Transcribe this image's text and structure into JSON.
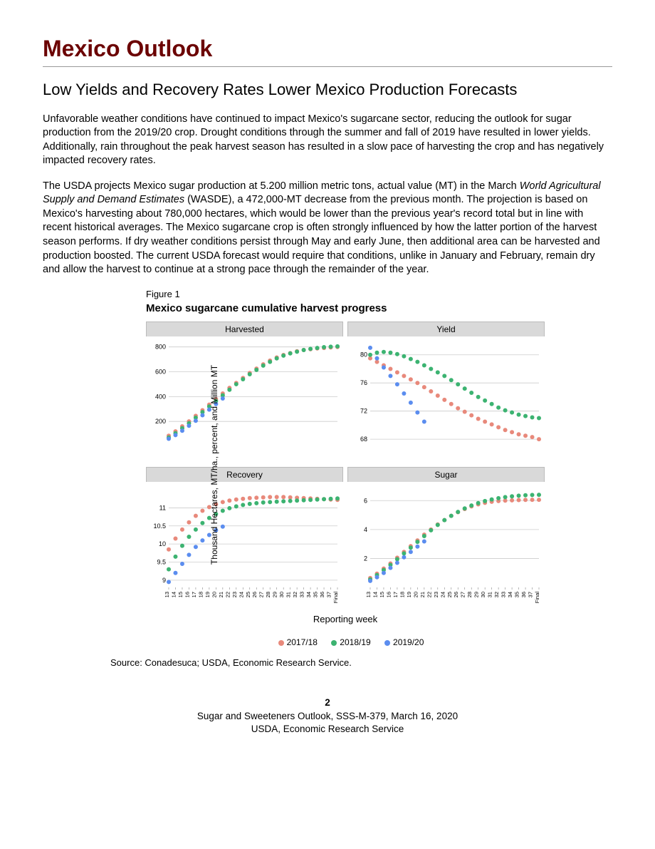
{
  "title": "Mexico Outlook",
  "subheading": "Low Yields and Recovery Rates Lower Mexico Production Forecasts",
  "paragraphs": {
    "p1": "Unfavorable weather conditions have continued to impact Mexico's sugarcane sector, reducing the outlook for sugar production from the 2019/20 crop.  Drought conditions through the summer and fall of 2019 have resulted in lower yields.  Additionally, rain throughout the peak harvest season has resulted in a slow pace of harvesting the crop and has negatively impacted recovery rates.",
    "p2a": "The USDA projects Mexico sugar production at 5.200 million metric tons, actual value (MT) in the March ",
    "p2_em": "World Agricultural Supply and Demand Estimates",
    "p2b": " (WASDE), a 472,000-MT decrease from the previous month. The projection is based on Mexico's harvesting about 780,000 hectares, which would be lower than the previous year's record total but in line with recent historical averages.  The Mexico sugarcane crop is often strongly influenced by how the latter portion of the harvest season performs.  If dry weather conditions persist through May and early June, then additional area can be harvested and production boosted.  The current USDA forecast would require that conditions, unlike in January and February, remain dry and allow the harvest to continue at a strong pace through the remainder of the year."
  },
  "figure": {
    "label": "Figure 1",
    "title": "Mexico sugarcane cumulative harvest progress",
    "ylabel": "Thousand Hectares, MT/ha., percent, and Million MT",
    "xlabel": "Reporting week",
    "source": "Source: Conadesuca; USDA, Economic Research Service.",
    "x_ticks": [
      "13",
      "14",
      "15",
      "16",
      "17",
      "18",
      "19",
      "20",
      "21",
      "22",
      "23",
      "24",
      "25",
      "26",
      "27",
      "28",
      "29",
      "30",
      "31",
      "32",
      "33",
      "34",
      "35",
      "36",
      "37",
      "Final"
    ],
    "colors": {
      "2017/18": "#e8897b",
      "2018/19": "#3cb371",
      "2019/20": "#5b8def",
      "grid": "#cccccc",
      "panel_header_bg": "#d9d9d9",
      "background": "#ffffff"
    },
    "marker": {
      "radius": 3.0,
      "type": "circle"
    },
    "tick_fontsize": 9,
    "legend": [
      {
        "label": "2017/18",
        "key": "2017/18"
      },
      {
        "label": "2018/19",
        "key": "2018/19"
      },
      {
        "label": "2019/20",
        "key": "2019/20"
      }
    ],
    "panels": {
      "harvested": {
        "title": "Harvested",
        "ylim": [
          0,
          850
        ],
        "yticks": [
          200,
          400,
          600,
          800
        ],
        "series": {
          "2017/18": [
            85,
            120,
            160,
            200,
            245,
            290,
            335,
            380,
            425,
            470,
            510,
            550,
            590,
            625,
            660,
            690,
            715,
            735,
            750,
            765,
            775,
            782,
            788,
            792,
            796,
            800
          ],
          "2018/19": [
            70,
            105,
            145,
            185,
            230,
            275,
            320,
            365,
            410,
            455,
            500,
            540,
            580,
            615,
            650,
            680,
            708,
            730,
            748,
            762,
            775,
            785,
            792,
            798,
            802,
            805
          ],
          "2019/20": [
            60,
            90,
            125,
            165,
            205,
            250,
            295,
            340,
            385
          ]
        }
      },
      "yield": {
        "title": "Yield",
        "ylim": [
          67,
          82
        ],
        "yticks": [
          68,
          72,
          76,
          80
        ],
        "series": {
          "2017/18": [
            79.5,
            79.0,
            78.5,
            78.0,
            77.5,
            77.0,
            76.5,
            76.0,
            75.4,
            74.8,
            74.2,
            73.6,
            73.0,
            72.4,
            71.9,
            71.4,
            70.9,
            70.5,
            70.1,
            69.7,
            69.3,
            69.0,
            68.7,
            68.5,
            68.3,
            68.0
          ],
          "2018/19": [
            80.0,
            80.3,
            80.4,
            80.3,
            80.1,
            79.8,
            79.4,
            79.0,
            78.5,
            78.0,
            77.5,
            77.0,
            76.4,
            75.8,
            75.2,
            74.6,
            74.0,
            73.5,
            73.0,
            72.5,
            72.1,
            71.8,
            71.5,
            71.3,
            71.1,
            71.0
          ],
          "2019/20": [
            81.0,
            79.5,
            78.2,
            77.0,
            75.8,
            74.5,
            73.2,
            71.8,
            70.5
          ]
        }
      },
      "recovery": {
        "title": "Recovery",
        "ylim": [
          8.8,
          11.6
        ],
        "yticks": [
          9.0,
          9.5,
          10.0,
          10.5,
          11.0
        ],
        "series": {
          "2017/18": [
            9.85,
            10.15,
            10.4,
            10.6,
            10.78,
            10.92,
            11.02,
            11.1,
            11.16,
            11.2,
            11.23,
            11.25,
            11.27,
            11.28,
            11.29,
            11.3,
            11.3,
            11.3,
            11.29,
            11.28,
            11.27,
            11.26,
            11.25,
            11.24,
            11.23,
            11.22
          ],
          "2018/19": [
            9.3,
            9.65,
            9.95,
            10.2,
            10.4,
            10.58,
            10.72,
            10.83,
            10.92,
            10.99,
            11.04,
            11.08,
            11.11,
            11.13,
            11.15,
            11.16,
            11.17,
            11.18,
            11.19,
            11.2,
            11.21,
            11.22,
            11.23,
            11.24,
            11.25,
            11.26
          ],
          "2019/20": [
            8.95,
            9.2,
            9.45,
            9.7,
            9.92,
            10.1,
            10.25,
            10.38,
            10.48
          ]
        }
      },
      "sugar": {
        "title": "Sugar",
        "ylim": [
          0,
          7
        ],
        "yticks": [
          2,
          4,
          6
        ],
        "series": {
          "2017/18": [
            0.65,
            0.95,
            1.3,
            1.65,
            2.05,
            2.45,
            2.85,
            3.25,
            3.65,
            4.0,
            4.35,
            4.65,
            4.95,
            5.2,
            5.42,
            5.6,
            5.74,
            5.85,
            5.92,
            5.97,
            6.0,
            6.02,
            6.04,
            6.05,
            6.06,
            6.06
          ],
          "2018/19": [
            0.55,
            0.85,
            1.2,
            1.55,
            1.95,
            2.35,
            2.75,
            3.15,
            3.55,
            3.95,
            4.32,
            4.65,
            4.95,
            5.22,
            5.46,
            5.66,
            5.83,
            5.97,
            6.08,
            6.17,
            6.24,
            6.3,
            6.34,
            6.37,
            6.39,
            6.4
          ],
          "2019/20": [
            0.45,
            0.7,
            1.0,
            1.35,
            1.7,
            2.08,
            2.45,
            2.82,
            3.18
          ]
        }
      }
    }
  },
  "footer": {
    "page": "2",
    "line1": "Sugar and Sweeteners Outlook, SSS-M-379, March 16, 2020",
    "line2": "USDA, Economic Research Service"
  }
}
